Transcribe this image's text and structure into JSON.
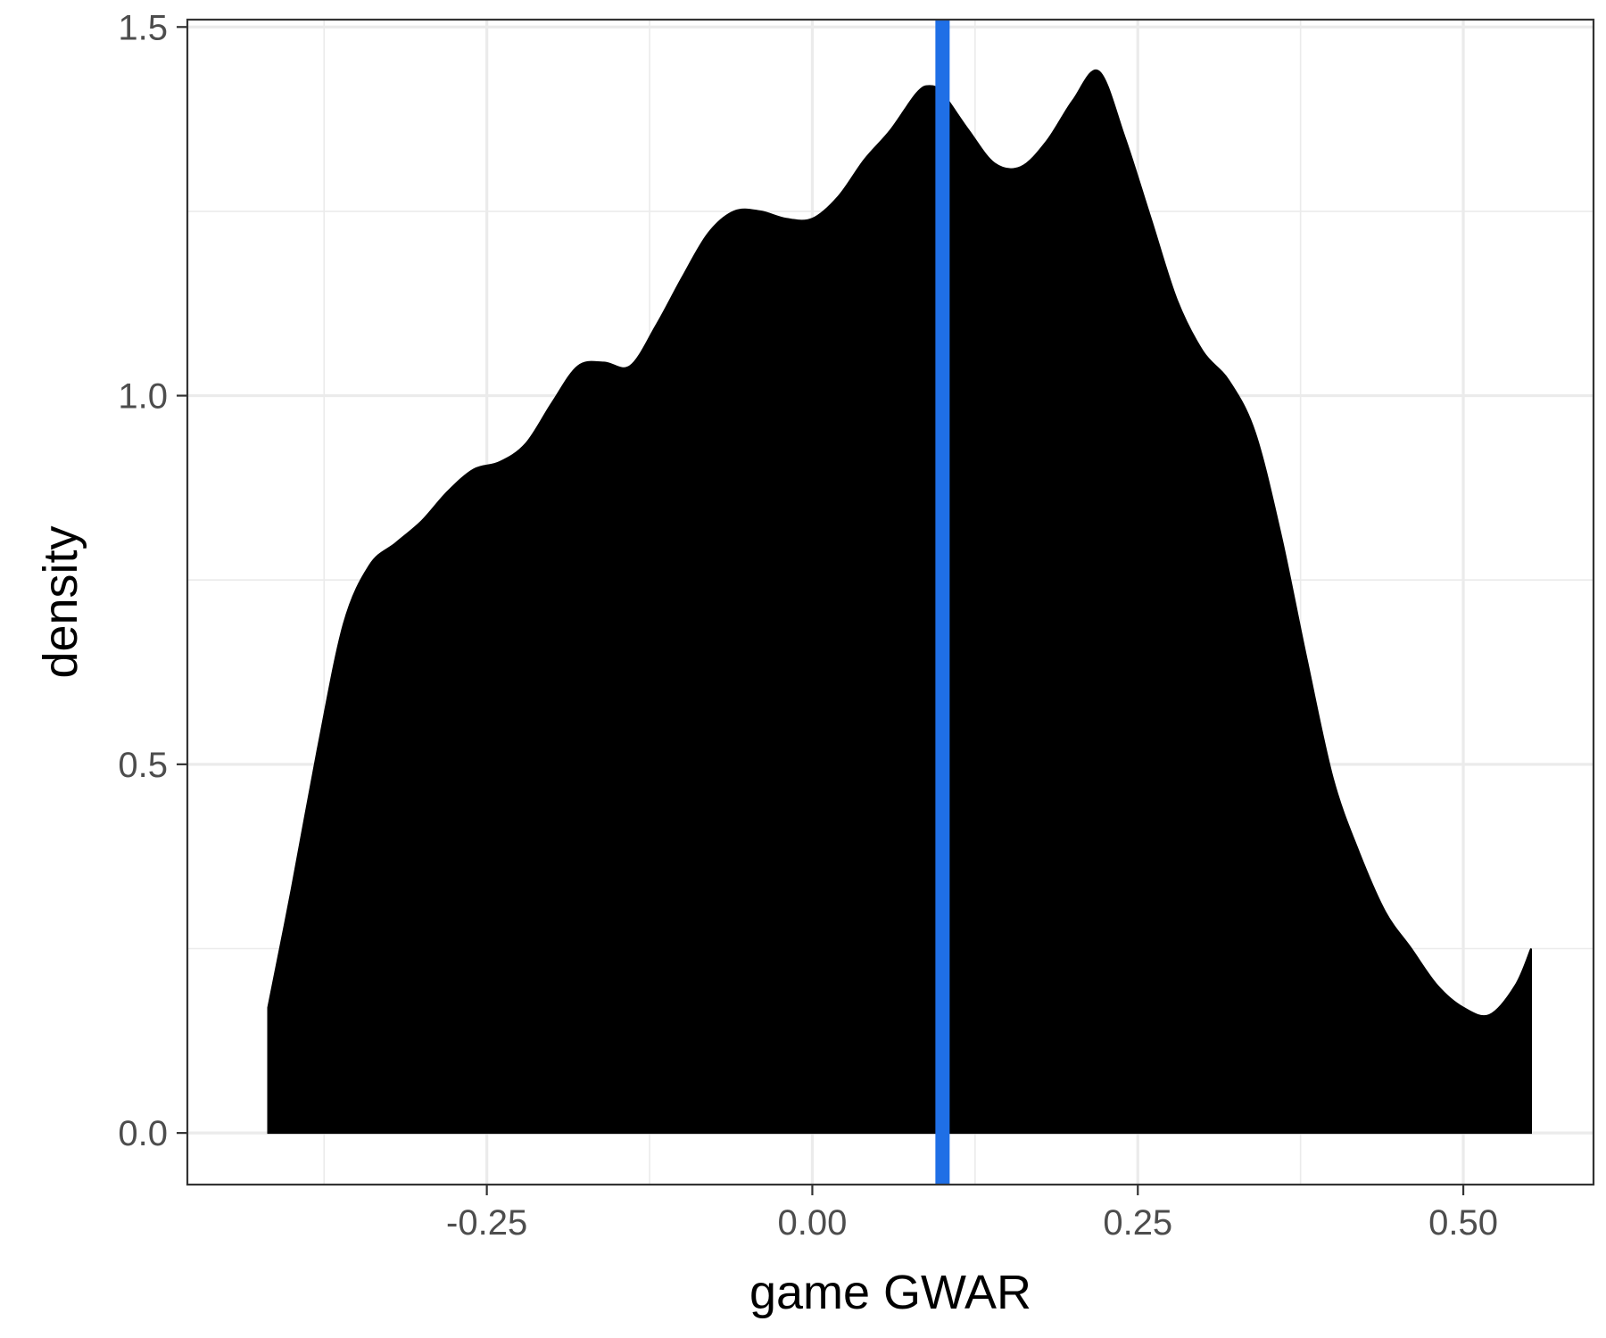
{
  "chart_data": {
    "type": "area",
    "xlabel": "game GWAR",
    "ylabel": "density",
    "xlim": [
      -0.48,
      0.6
    ],
    "ylim": [
      -0.07,
      1.51
    ],
    "x_ticks": [
      -0.25,
      0.0,
      0.25,
      0.5
    ],
    "x_tick_labels": [
      "-0.25",
      "0.00",
      "0.25",
      "0.50"
    ],
    "x_minor_ticks": [
      -0.375,
      -0.125,
      0.125,
      0.375
    ],
    "y_ticks": [
      0.0,
      0.5,
      1.0,
      1.5
    ],
    "y_tick_labels": [
      "0.0",
      "0.5",
      "1.0",
      "1.5"
    ],
    "y_minor_ticks": [
      0.25,
      0.75,
      1.25
    ],
    "grid": true,
    "fill_color": "#000000",
    "vline": {
      "x": 0.1,
      "color": "#1f6fe6"
    },
    "series": [
      {
        "x": [
          -0.418,
          -0.4,
          -0.38,
          -0.36,
          -0.34,
          -0.32,
          -0.3,
          -0.28,
          -0.26,
          -0.24,
          -0.22,
          -0.2,
          -0.18,
          -0.16,
          -0.14,
          -0.12,
          -0.1,
          -0.08,
          -0.06,
          -0.04,
          -0.02,
          0.0,
          0.02,
          0.04,
          0.06,
          0.08,
          0.09,
          0.1,
          0.12,
          0.14,
          0.16,
          0.18,
          0.2,
          0.22,
          0.24,
          0.26,
          0.28,
          0.3,
          0.32,
          0.34,
          0.36,
          0.38,
          0.4,
          0.42,
          0.44,
          0.46,
          0.48,
          0.5,
          0.52,
          0.54,
          0.552
        ],
        "y": [
          0.17,
          0.33,
          0.52,
          0.69,
          0.77,
          0.8,
          0.83,
          0.87,
          0.9,
          0.91,
          0.935,
          0.99,
          1.04,
          1.045,
          1.04,
          1.095,
          1.16,
          1.22,
          1.25,
          1.25,
          1.24,
          1.24,
          1.27,
          1.32,
          1.36,
          1.41,
          1.42,
          1.41,
          1.36,
          1.315,
          1.31,
          1.345,
          1.4,
          1.44,
          1.35,
          1.24,
          1.13,
          1.06,
          1.02,
          0.95,
          0.81,
          0.64,
          0.48,
          0.38,
          0.3,
          0.25,
          0.2,
          0.17,
          0.16,
          0.2,
          0.25
        ]
      }
    ]
  }
}
